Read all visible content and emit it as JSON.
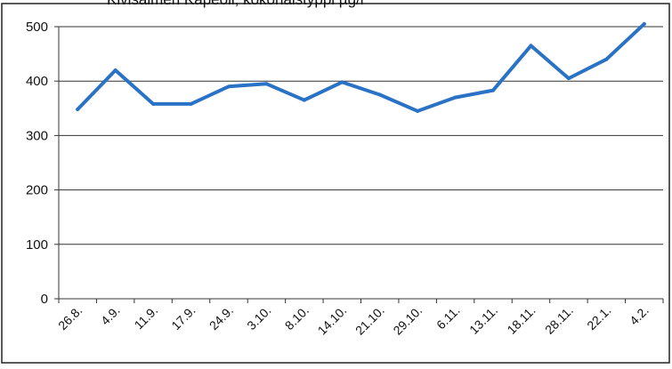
{
  "chart_data": {
    "type": "line",
    "title": "Kivisalmen Kapeoli, kokonaistyppi µg/l",
    "xlabel": "",
    "ylabel": "",
    "categories": [
      "26.8.",
      "4.9.",
      "11.9.",
      "17.9.",
      "24.9.",
      "3.10.",
      "8.10.",
      "14.10.",
      "21.10.",
      "29.10.",
      "6.11.",
      "13.11.",
      "18.11.",
      "28.11.",
      "22.1.",
      "4.2."
    ],
    "series": [
      {
        "values": [
          348,
          420,
          358,
          358,
          390,
          395,
          365,
          398,
          375,
          345,
          370,
          383,
          465,
          405,
          440,
          505
        ]
      }
    ],
    "ylim": [
      0,
      500
    ],
    "yticks": [
      0,
      100,
      200,
      300,
      400,
      500
    ],
    "grid": true,
    "line_color": "#2a72c6"
  }
}
